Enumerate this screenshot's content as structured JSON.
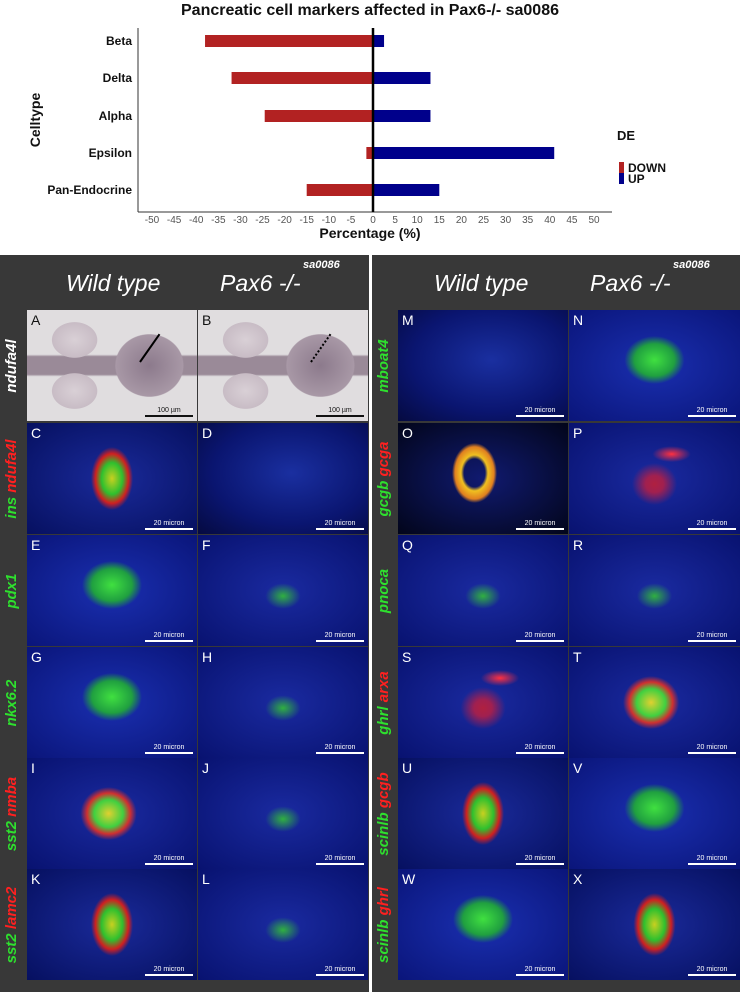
{
  "chart_data": {
    "type": "bar",
    "title": "Pancreatic cell markers affected in Pax6-/- sa0086",
    "xlabel": "Percentage (%)",
    "ylabel": "Celltype",
    "categories": [
      "Beta",
      "Delta",
      "Alpha",
      "Epsilon",
      "Pan-Endocrine"
    ],
    "series": [
      {
        "name": "DOWN",
        "color": "#b22222",
        "values": [
          -38,
          -32,
          -24.5,
          -1.5,
          -15
        ]
      },
      {
        "name": "UP",
        "color": "#00008b",
        "values": [
          2.5,
          13,
          13,
          41,
          15
        ]
      }
    ],
    "xlim": [
      -50,
      50
    ],
    "xticks": [
      -50,
      -45,
      -40,
      -35,
      -30,
      -25,
      -20,
      -15,
      -10,
      -5,
      0,
      5,
      10,
      15,
      20,
      25,
      30,
      35,
      40,
      45,
      50
    ],
    "legend": {
      "title": "DE",
      "placement": "right"
    },
    "grid": false
  },
  "sections": [
    {
      "wt": "Wild type",
      "mut": "Pax6 -/-",
      "sup": "sa0086",
      "rows": [
        {
          "label": [
            {
              "t": "ndufa4l",
              "c": "w"
            }
          ],
          "panels": [
            {
              "id": "A",
              "kind": "wish",
              "arrow": "solid",
              "scale": "100 µm"
            },
            {
              "id": "B",
              "kind": "wish",
              "arrow": "dotted",
              "scale": "100 µm"
            }
          ]
        },
        {
          "label": [
            {
              "t": "ins ",
              "c": "g"
            },
            {
              "t": "ndufa4l",
              "c": "r"
            }
          ],
          "panels": [
            {
              "id": "C",
              "kind": "gr",
              "scale": "20 micron"
            },
            {
              "id": "D",
              "kind": "blue",
              "scale": "20 micron"
            }
          ]
        },
        {
          "label": [
            {
              "t": "pdx1",
              "c": "g"
            }
          ],
          "panels": [
            {
              "id": "E",
              "kind": "green",
              "scale": "20 micron"
            },
            {
              "id": "F",
              "kind": "greenlow",
              "scale": "20 micron"
            }
          ]
        },
        {
          "label": [
            {
              "t": "nkx6.2",
              "c": "g"
            }
          ],
          "panels": [
            {
              "id": "G",
              "kind": "green",
              "scale": "20 micron"
            },
            {
              "id": "H",
              "kind": "greenlow",
              "scale": "20 micron"
            }
          ]
        },
        {
          "label": [
            {
              "t": "sst2 ",
              "c": "g"
            },
            {
              "t": "nmba",
              "c": "r"
            }
          ],
          "panels": [
            {
              "id": "I",
              "kind": "gy",
              "scale": "20 micron"
            },
            {
              "id": "J",
              "kind": "greenlow",
              "scale": "20 micron"
            }
          ]
        },
        {
          "label": [
            {
              "t": "sst2 ",
              "c": "g"
            },
            {
              "t": "lamc2",
              "c": "r"
            }
          ],
          "panels": [
            {
              "id": "K",
              "kind": "gr",
              "scale": "20 micron"
            },
            {
              "id": "L",
              "kind": "greenlow",
              "scale": "20 micron"
            }
          ]
        }
      ]
    },
    {
      "wt": "Wild type",
      "mut": "Pax6 -/-",
      "sup": "sa0086",
      "rows": [
        {
          "label": [
            {
              "t": "mboat4",
              "c": "g"
            }
          ],
          "panels": [
            {
              "id": "M",
              "kind": "blue",
              "scale": "20 micron"
            },
            {
              "id": "N",
              "kind": "green",
              "scale": "20 micron"
            }
          ]
        },
        {
          "label": [
            {
              "t": "gcgb ",
              "c": "g"
            },
            {
              "t": "gcga",
              "c": "r"
            }
          ],
          "panels": [
            {
              "id": "O",
              "kind": "yellow",
              "scale": "20 micron"
            },
            {
              "id": "P",
              "kind": "red",
              "scale": "20 micron"
            }
          ]
        },
        {
          "label": [
            {
              "t": "pnoca",
              "c": "g"
            }
          ],
          "panels": [
            {
              "id": "Q",
              "kind": "greenlow",
              "scale": "20 micron"
            },
            {
              "id": "R",
              "kind": "greenlow",
              "scale": "20 micron"
            }
          ]
        },
        {
          "label": [
            {
              "t": "ghrl ",
              "c": "g"
            },
            {
              "t": "arxa",
              "c": "r"
            }
          ],
          "panels": [
            {
              "id": "S",
              "kind": "red",
              "scale": "20 micron"
            },
            {
              "id": "T",
              "kind": "gy",
              "scale": "20 micron"
            }
          ]
        },
        {
          "label": [
            {
              "t": "scinlb ",
              "c": "g"
            },
            {
              "t": "gcgb",
              "c": "r"
            }
          ],
          "panels": [
            {
              "id": "U",
              "kind": "gr",
              "scale": "20 micron"
            },
            {
              "id": "V",
              "kind": "green",
              "scale": "20 micron"
            }
          ]
        },
        {
          "label": [
            {
              "t": "scinlb ",
              "c": "g"
            },
            {
              "t": "ghrl",
              "c": "r"
            }
          ],
          "panels": [
            {
              "id": "W",
              "kind": "green",
              "scale": "20 micron"
            },
            {
              "id": "X",
              "kind": "gr",
              "scale": "20 micron"
            }
          ]
        }
      ]
    }
  ]
}
